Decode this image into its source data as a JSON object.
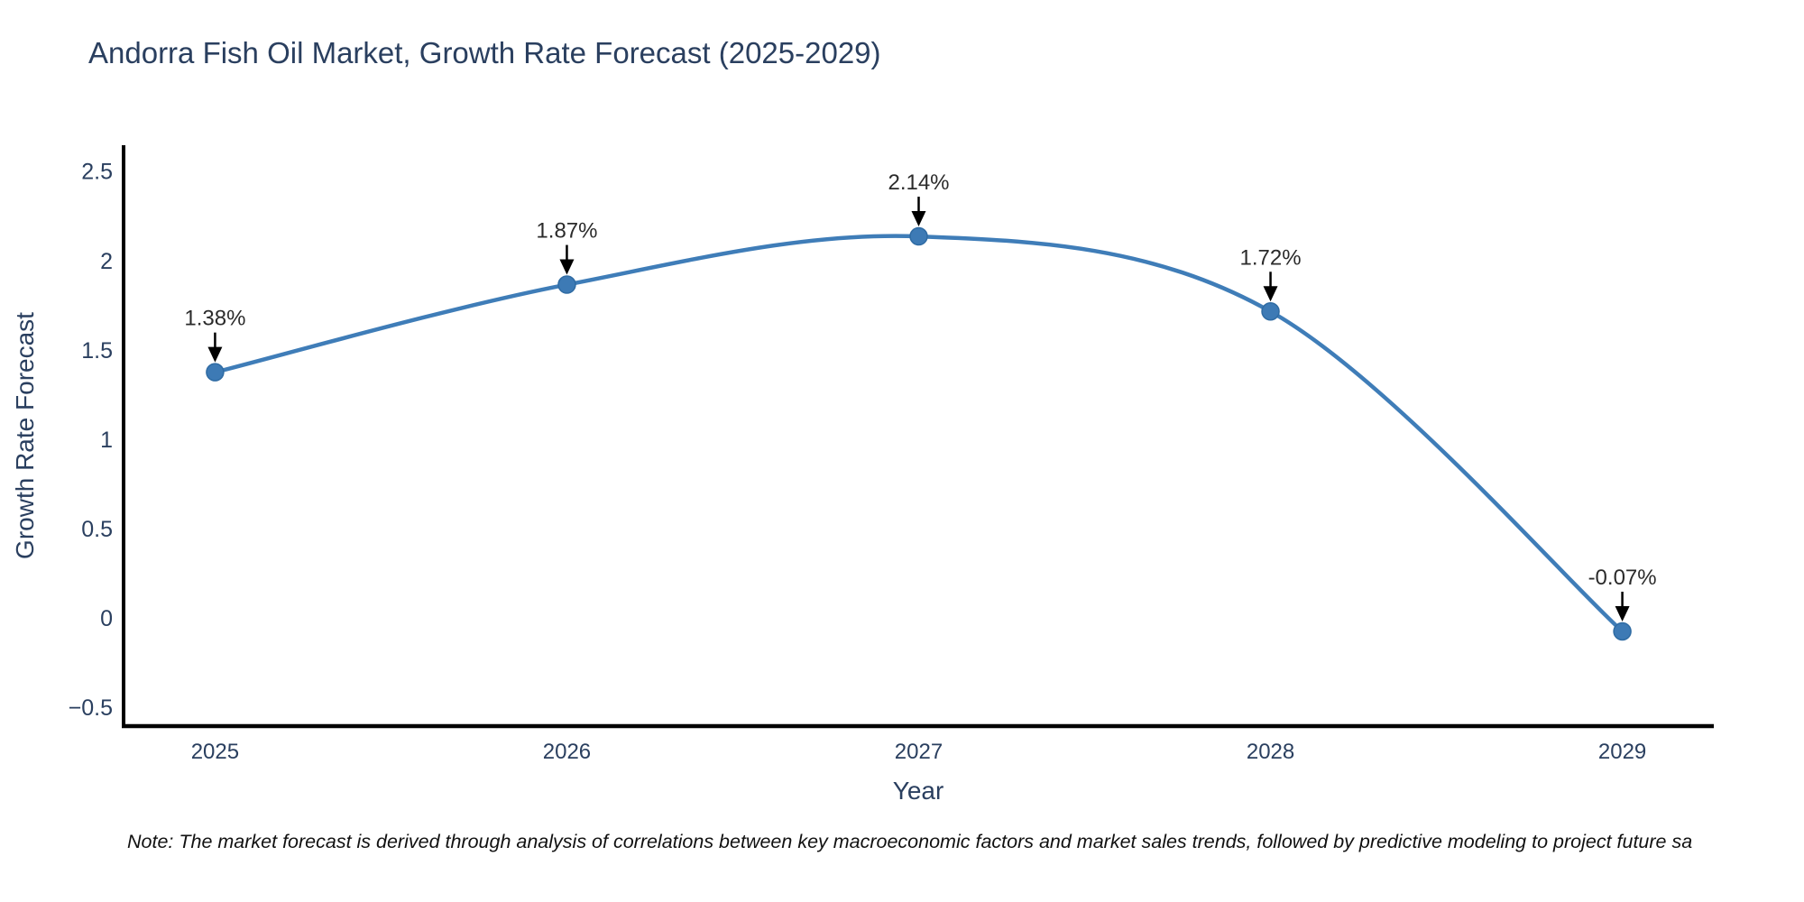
{
  "title": "Andorra Fish Oil Market, Growth Rate Forecast (2025-2029)",
  "note": "Note: The market forecast is derived through analysis of correlations between key macroeconomic factors and market sales trends, followed by predictive modeling to project future sa",
  "colors": {
    "line": "#3f7db8",
    "marker_fill": "#3d7ab5",
    "marker_edge": "#2f6ba3",
    "axis_line": "#000000",
    "tick_text": "#2a3f5f",
    "title_text": "#2a3f5f",
    "annotation_text": "#2b2b2b",
    "arrow": "#000000"
  },
  "chart_data": {
    "type": "line",
    "title": "Andorra Fish Oil Market, Growth Rate Forecast (2025-2029)",
    "xlabel": "Year",
    "ylabel": "Growth Rate Forecast",
    "x": [
      2025,
      2026,
      2027,
      2028,
      2029
    ],
    "series": [
      {
        "name": "Growth Rate Forecast",
        "values": [
          1.38,
          1.87,
          2.14,
          1.72,
          -0.07
        ]
      }
    ],
    "point_labels": [
      "1.38%",
      "1.87%",
      "2.14%",
      "1.72%",
      "-0.07%"
    ],
    "x_tick_labels": [
      "2025",
      "2026",
      "2027",
      "2028",
      "2029"
    ],
    "y_ticks": [
      {
        "value": -0.5,
        "label": "−0.5"
      },
      {
        "value": 0,
        "label": "0"
      },
      {
        "value": 0.5,
        "label": "0.5"
      },
      {
        "value": 1,
        "label": "1"
      },
      {
        "value": 1.5,
        "label": "1.5"
      },
      {
        "value": 2,
        "label": "2"
      },
      {
        "value": 2.5,
        "label": "2.5"
      }
    ],
    "xlim": [
      2024.74,
      2029.26
    ],
    "ylim": [
      -0.6,
      2.65
    ],
    "grid": false,
    "legend": "none",
    "line_shape": "spline",
    "markers": true,
    "annotation_style": "value labels above points with black down arrows"
  }
}
